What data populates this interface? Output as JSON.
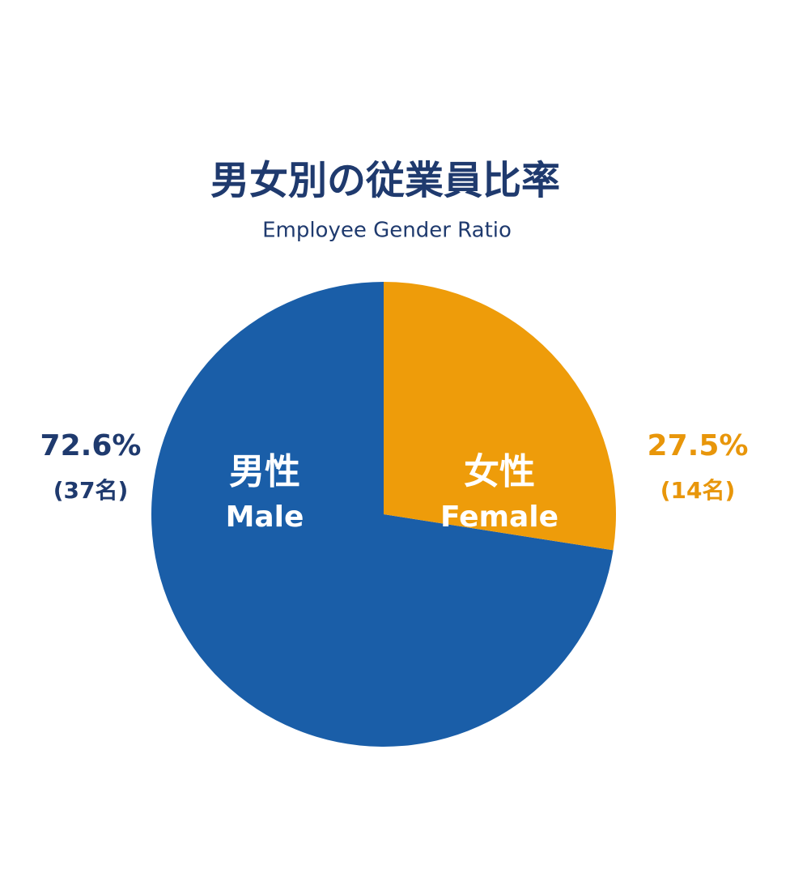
{
  "chart_data": {
    "type": "pie",
    "title": "男女別の従業員比率",
    "subtitle": "Employee Gender Ratio",
    "categories": [
      "男性",
      "女性"
    ],
    "categories_en": [
      "Male",
      "Female"
    ],
    "values": [
      72.6,
      27.5
    ],
    "value_labels": [
      "72.6%",
      "27.5%"
    ],
    "count_labels": [
      "(37名)",
      "(14名)"
    ],
    "colors": [
      "#1a5ea8",
      "#ee9c0a"
    ],
    "label_colors": [
      "#1f3a6e",
      "#e8960a"
    ]
  }
}
